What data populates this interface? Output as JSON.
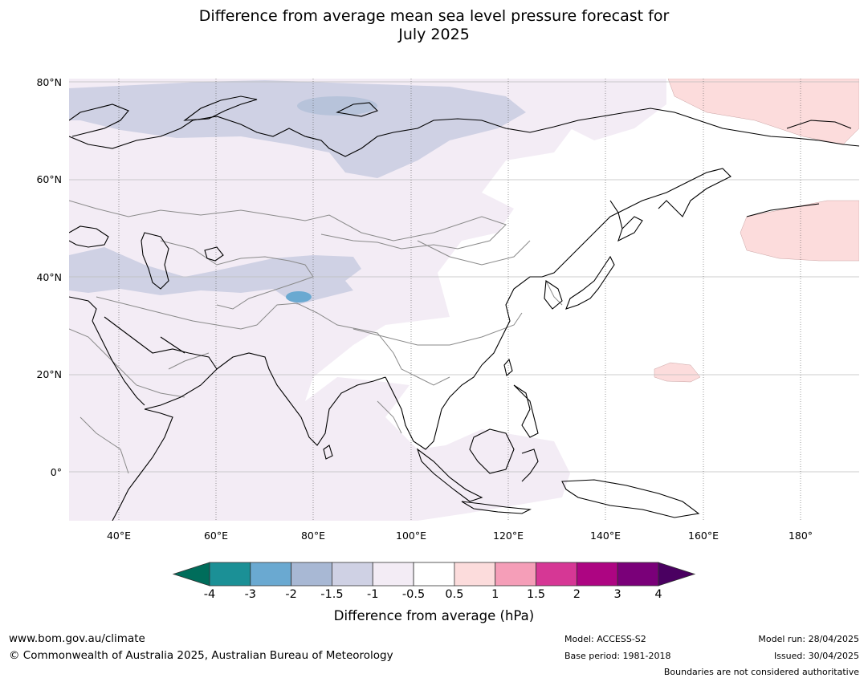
{
  "title_line1": "Difference from average mean sea level pressure forecast for",
  "title_line2": "July 2025",
  "map": {
    "lat_labels": [
      "80°N",
      "60°N",
      "40°N",
      "20°N",
      "0°"
    ],
    "lon_labels": [
      "40°E",
      "60°E",
      "80°E",
      "100°E",
      "120°E",
      "140°E",
      "160°E",
      "180°"
    ],
    "anomaly_colors": {
      "neg_0_5_to_1": "#f3ecf5",
      "neg_1_5_to_2": "#cfd1e4",
      "neg_2_to_3": "#a8b8d4",
      "neg_3_to_4": "#6aa9d1",
      "pos_0_5_to_1": "#fcdcdc"
    }
  },
  "colorbar": {
    "title": "Difference from average (hPa)",
    "tick_labels": [
      "-4",
      "-3",
      "-2",
      "-1.5",
      "-1",
      "-0.5",
      "0.5",
      "1",
      "1.5",
      "2",
      "3",
      "4"
    ],
    "colors": [
      "#006d5b",
      "#1b9096",
      "#6aa9d1",
      "#a8b8d4",
      "#cfd1e4",
      "#f3ecf5",
      "#ffffff",
      "#fcdcdc",
      "#f59eb8",
      "#d63795",
      "#ad0582",
      "#7a0079",
      "#4a0061"
    ]
  },
  "footer": {
    "website": "www.bom.gov.au/climate",
    "copyright": "© Commonwealth of Australia 2025, Australian Bureau of Meteorology",
    "model": "Model: ACCESS-S2",
    "base_period": "Base period: 1981-2018",
    "model_run": "Model run: 28/04/2025",
    "issued": "Issued: 30/04/2025",
    "disclaimer": "Boundaries are not considered authoritative"
  }
}
